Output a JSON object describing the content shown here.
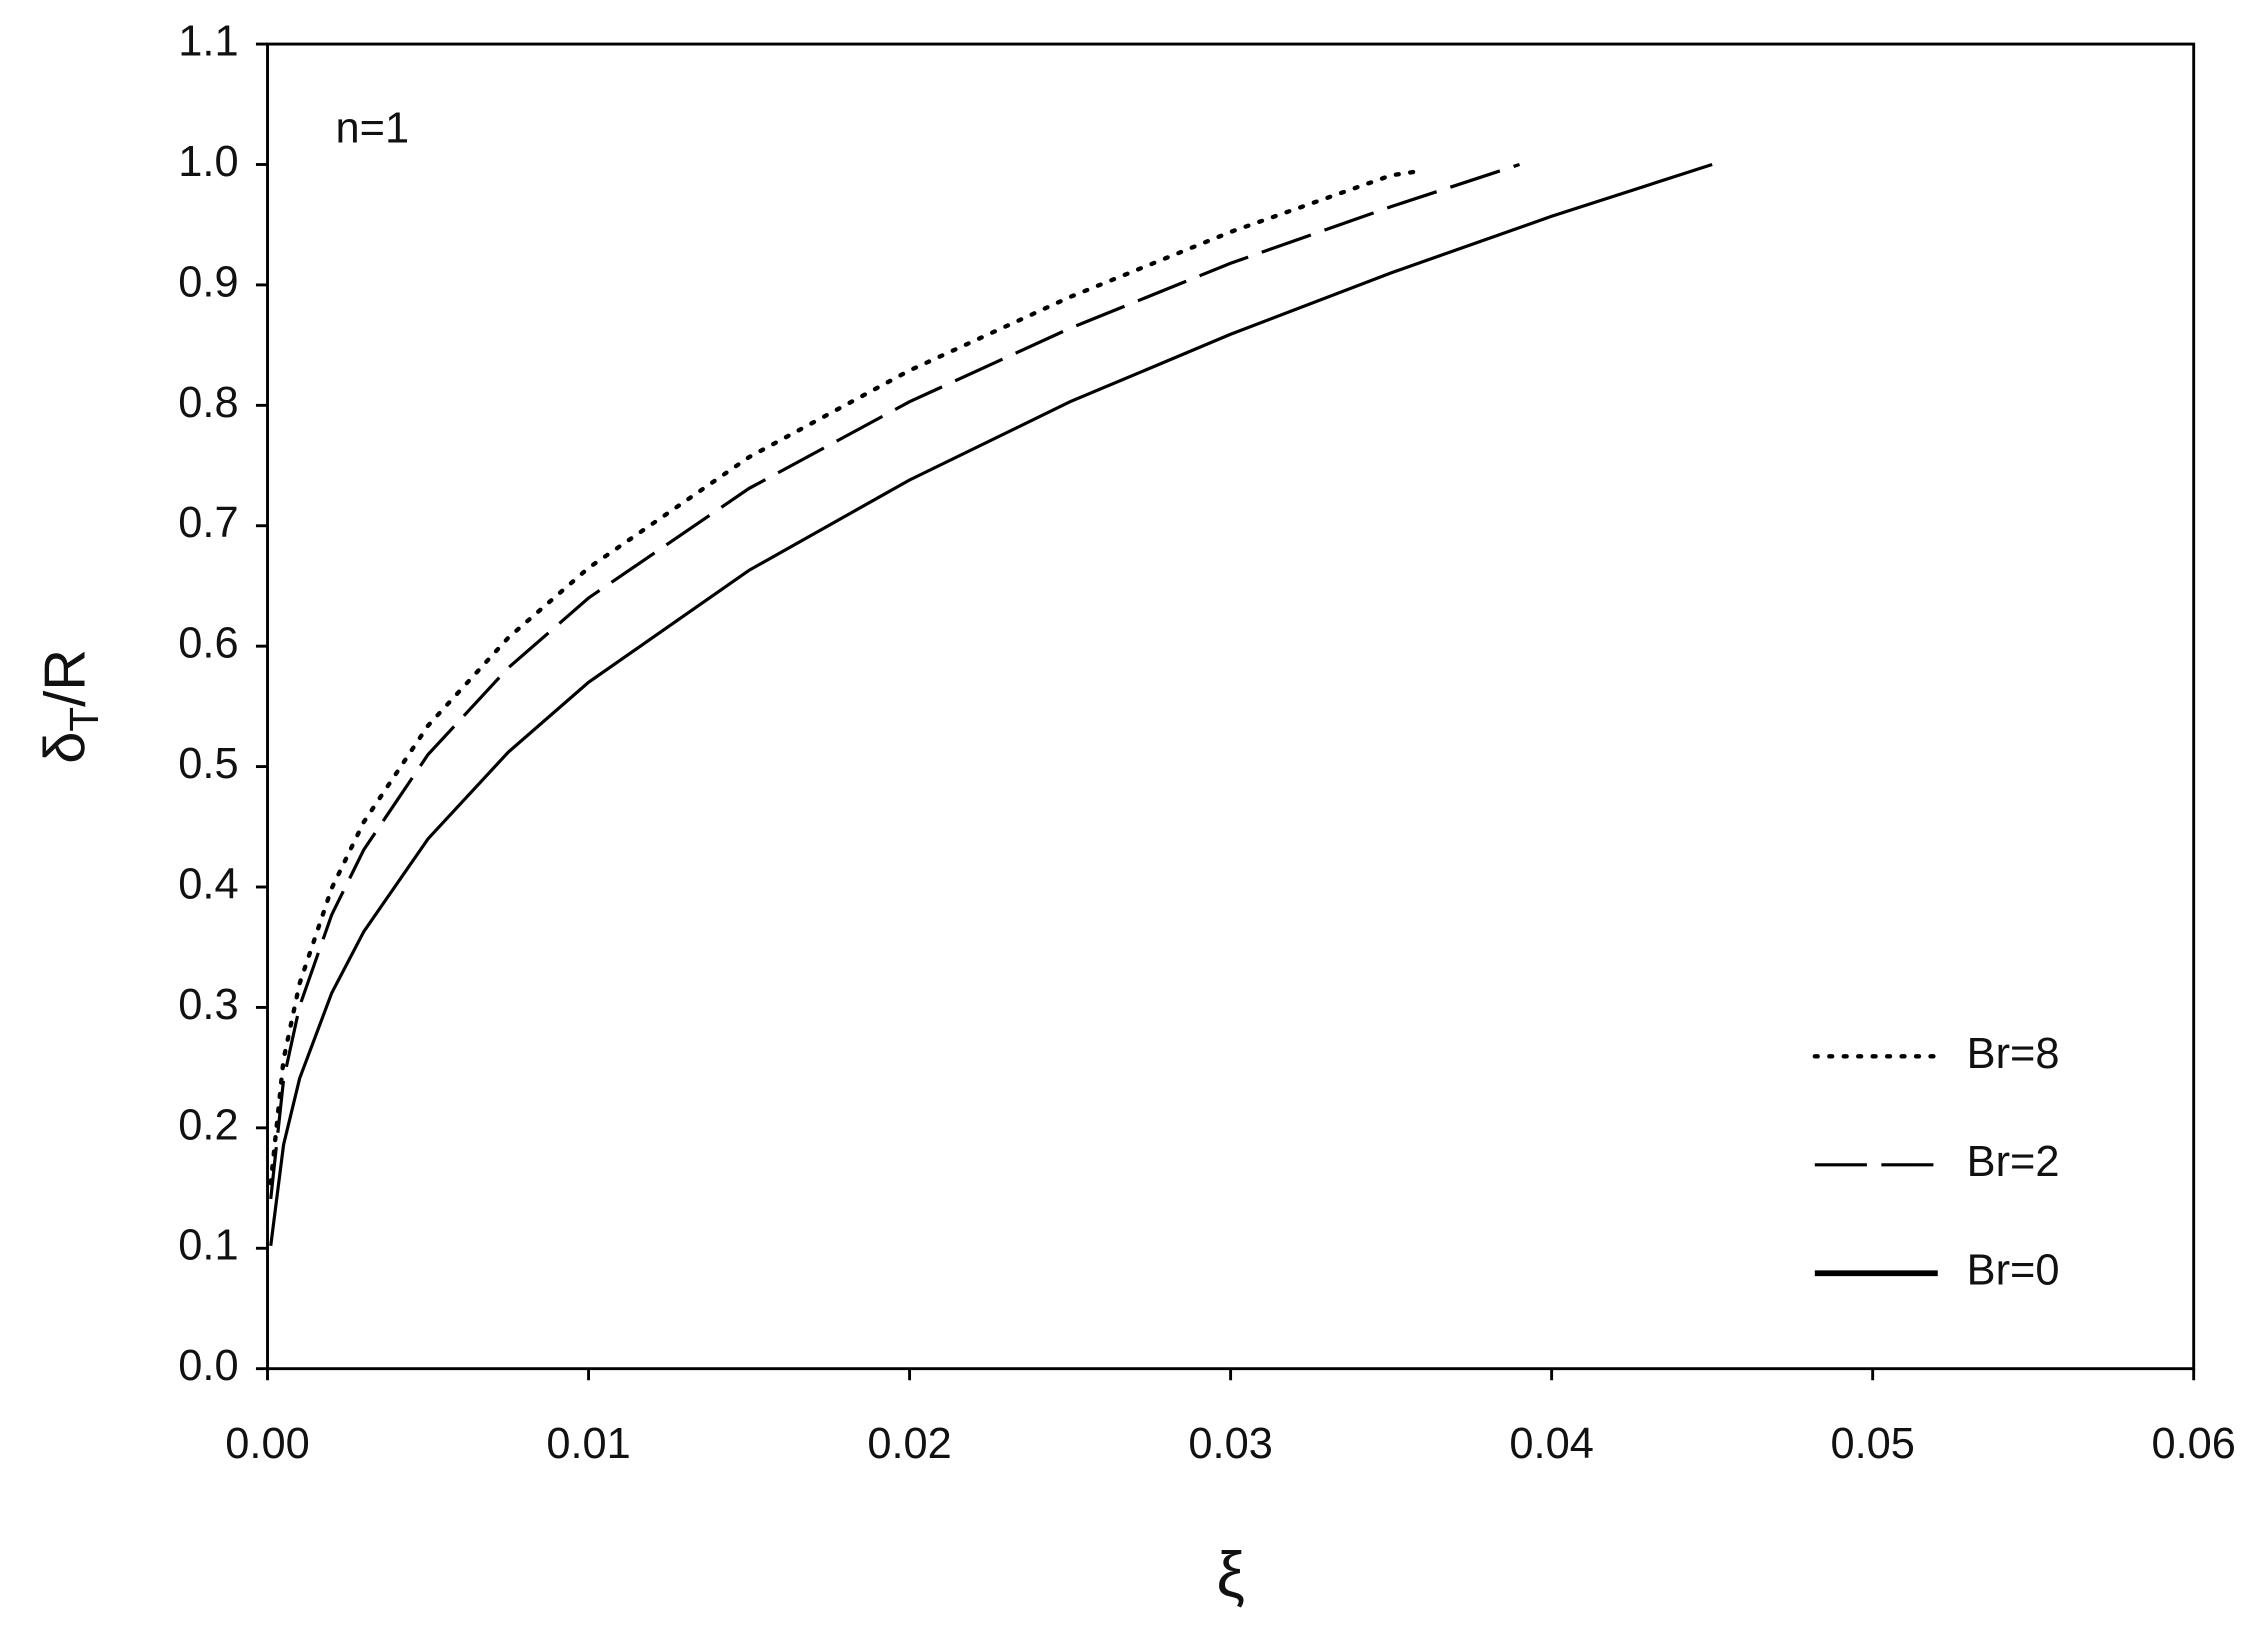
{
  "chart_data": {
    "type": "line",
    "xlabel": "ξ",
    "ylabel": [
      "δ",
      "T",
      "/R"
    ],
    "annotation": "n=1",
    "xlim": [
      0,
      0.06
    ],
    "ylim": [
      0,
      1.1
    ],
    "xticks": [
      {
        "value": 0,
        "label": "0.00"
      },
      0.01,
      0.02,
      0.03,
      0.04,
      0.05,
      0.06
    ],
    "yticks": [
      {
        "value": 0,
        "label": "0.0"
      },
      0.1,
      0.2,
      0.3,
      0.4,
      0.5,
      0.6,
      0.7,
      0.8,
      0.9,
      {
        "value": 1,
        "label": "1.0"
      },
      1.1
    ],
    "grid": false,
    "legend": "lower right",
    "series": [
      {
        "name": "Br=8",
        "color": "#000000",
        "dash": "dotted",
        "x": [
          0.0001,
          0.0005,
          0.001,
          0.002,
          0.003,
          0.005,
          0.0075,
          0.01,
          0.015,
          0.02,
          0.025,
          0.03,
          0.035,
          0.036
        ],
        "values": [
          0.154,
          0.257,
          0.32,
          0.399,
          0.454,
          0.534,
          0.607,
          0.665,
          0.757,
          0.829,
          0.89,
          0.944,
          0.991,
          0.995
        ]
      },
      {
        "name": "Br=2",
        "color": "#000000",
        "dash": "dashed",
        "x": [
          0.0001,
          0.0005,
          0.001,
          0.002,
          0.003,
          0.005,
          0.0075,
          0.01,
          0.015,
          0.02,
          0.025,
          0.03,
          0.035,
          0.039
        ],
        "values": [
          0.141,
          0.24,
          0.301,
          0.377,
          0.431,
          0.51,
          0.582,
          0.64,
          0.731,
          0.803,
          0.864,
          0.918,
          0.965,
          1.0
        ]
      },
      {
        "name": "Br=0",
        "color": "#000000",
        "dash": "solid",
        "x": [
          0.0001,
          0.0005,
          0.001,
          0.002,
          0.003,
          0.005,
          0.0075,
          0.01,
          0.015,
          0.02,
          0.025,
          0.03,
          0.035,
          0.04,
          0.045
        ],
        "values": [
          0.102,
          0.186,
          0.241,
          0.312,
          0.363,
          0.44,
          0.512,
          0.57,
          0.663,
          0.738,
          0.803,
          0.859,
          0.91,
          0.957,
          1.0
        ]
      }
    ]
  }
}
